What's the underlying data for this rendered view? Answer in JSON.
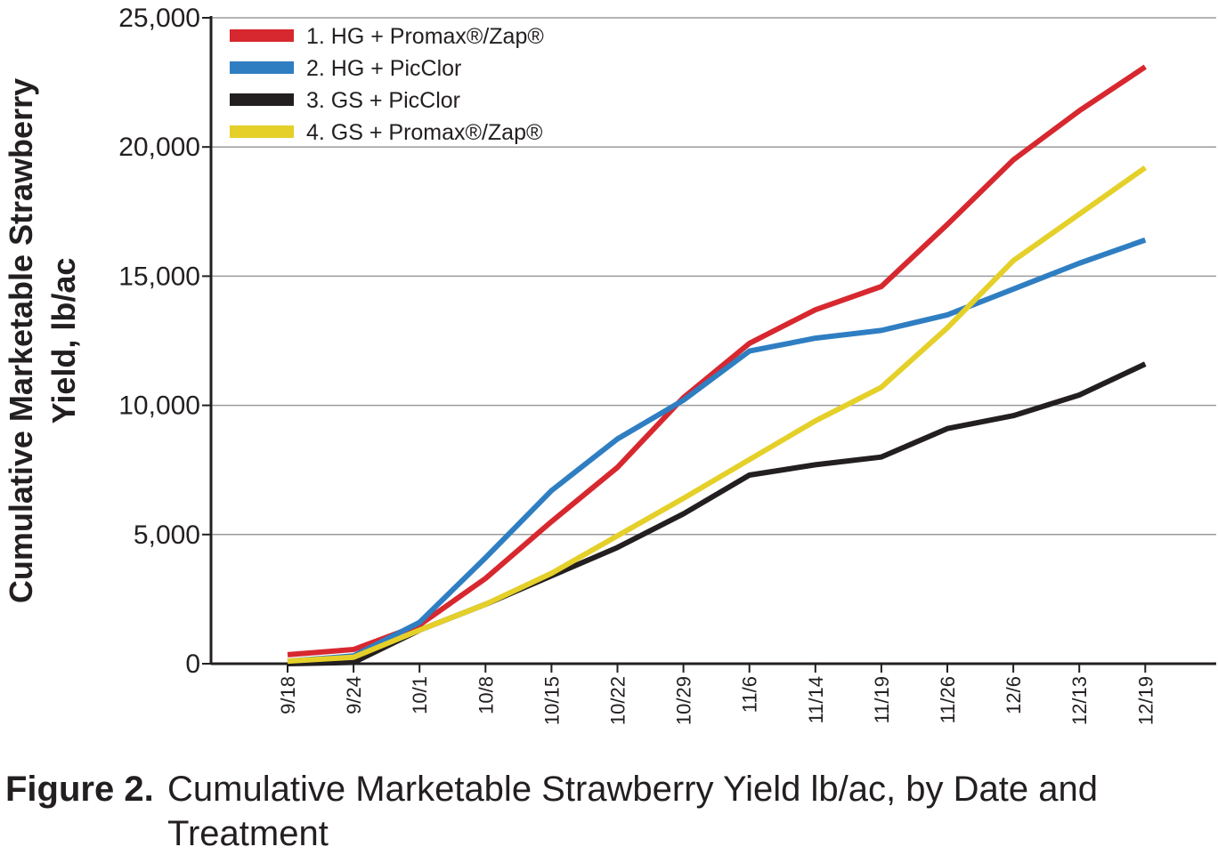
{
  "chart_data": {
    "type": "line",
    "ylabel_line1": "Cumulative Marketable Strawberry",
    "ylabel_line2": "Yield, lb/ac",
    "xlabel": "",
    "ylim": [
      0,
      25000
    ],
    "yticks": [
      0,
      5000,
      10000,
      15000,
      20000,
      25000
    ],
    "ytick_labels": [
      "0",
      "5,000",
      "10,000",
      "15,000",
      "20,000",
      "25,000"
    ],
    "categories": [
      "9/18",
      "9/24",
      "10/1",
      "10/8",
      "10/15",
      "10/22",
      "10/29",
      "11/6",
      "11/14",
      "11/19",
      "11/26",
      "12/6",
      "12/13",
      "12/19"
    ],
    "grid": "horizontal",
    "legend_placement": "top-left",
    "series": [
      {
        "name": "1. HG + Promax®/Zap®",
        "color": "#d7282f",
        "values": [
          350,
          550,
          1500,
          3300,
          5500,
          7600,
          10300,
          12400,
          13700,
          14600,
          17000,
          19500,
          21400,
          23100
        ]
      },
      {
        "name": "2. HG + PicClor",
        "color": "#2f7ec2",
        "values": [
          100,
          300,
          1600,
          4100,
          6700,
          8700,
          10200,
          12100,
          12600,
          12900,
          13500,
          14500,
          15500,
          16400
        ]
      },
      {
        "name": "3. GS + PicClor",
        "color": "#231f20",
        "values": [
          0,
          50,
          1300,
          2300,
          3400,
          4500,
          5800,
          7300,
          7700,
          8000,
          9100,
          9600,
          10400,
          11600
        ]
      },
      {
        "name": "4. GS + Promax®/Zap®",
        "color": "#e5d02a",
        "values": [
          100,
          250,
          1300,
          2300,
          3500,
          4950,
          6400,
          7900,
          9400,
          10700,
          13000,
          15600,
          17400,
          19200
        ]
      }
    ]
  },
  "caption": {
    "label": "Figure 2.",
    "text": "Cumulative Marketable Strawberry Yield lb/ac, by Date and Treatment"
  }
}
